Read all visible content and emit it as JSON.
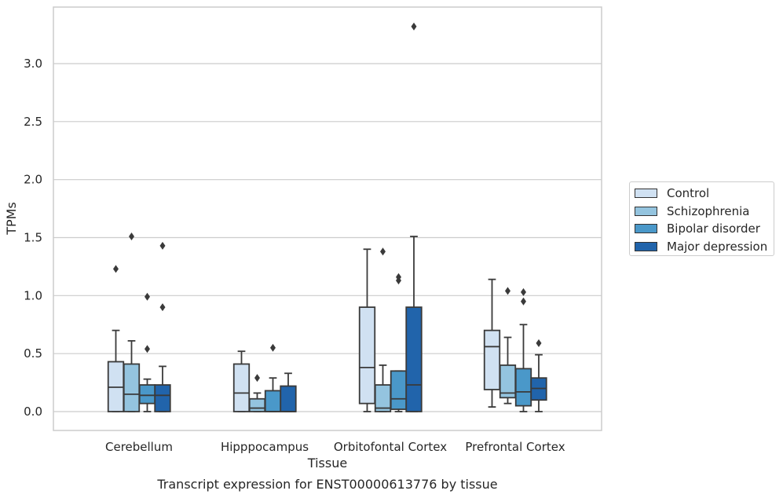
{
  "chart_data": {
    "type": "box",
    "title": "",
    "xlabel": "Tissue",
    "ylabel": "TPMs",
    "caption": "Transcript expression for ENST00000613776 by tissue",
    "ylim": [
      -0.16,
      3.5
    ],
    "yticks": [
      "0.0",
      "0.5",
      "1.0",
      "1.5",
      "2.0",
      "2.5",
      "3.0"
    ],
    "ytick_values": [
      0,
      0.5,
      1.0,
      1.5,
      2.0,
      2.5,
      3.0
    ],
    "grid": true,
    "legend_position": "right",
    "categories": [
      "Cerebellum",
      "Hipppocampus",
      "Orbitofontal Cortex",
      "Prefrontal Cortex"
    ],
    "series": [
      {
        "name": "Control",
        "color": "#d0e1f2",
        "boxes": [
          {
            "whislo": 0,
            "q1": 0,
            "med": 0.21,
            "q3": 0.43,
            "whishi": 0.7,
            "fliers": [
              1.23
            ]
          },
          {
            "whislo": 0,
            "q1": 0,
            "med": 0.16,
            "q3": 0.41,
            "whishi": 0.52,
            "fliers": []
          },
          {
            "whislo": 0,
            "q1": 0.07,
            "med": 0.38,
            "q3": 0.9,
            "whishi": 1.4,
            "fliers": []
          },
          {
            "whislo": 0.04,
            "q1": 0.19,
            "med": 0.56,
            "q3": 0.7,
            "whishi": 1.14,
            "fliers": []
          }
        ]
      },
      {
        "name": "Schizophrenia",
        "color": "#94c4df",
        "boxes": [
          {
            "whislo": 0,
            "q1": 0,
            "med": 0.15,
            "q3": 0.41,
            "whishi": 0.61,
            "fliers": [
              1.51
            ]
          },
          {
            "whislo": 0,
            "q1": 0,
            "med": 0.03,
            "q3": 0.11,
            "whishi": 0.16,
            "fliers": [
              0.29
            ]
          },
          {
            "whislo": 0,
            "q1": 0,
            "med": 0.03,
            "q3": 0.23,
            "whishi": 0.4,
            "fliers": [
              1.38
            ]
          },
          {
            "whislo": 0.07,
            "q1": 0.12,
            "med": 0.16,
            "q3": 0.4,
            "whishi": 0.64,
            "fliers": [
              1.04
            ]
          }
        ]
      },
      {
        "name": "Bipolar disorder",
        "color": "#4a98c9",
        "boxes": [
          {
            "whislo": 0,
            "q1": 0.07,
            "med": 0.14,
            "q3": 0.23,
            "whishi": 0.28,
            "fliers": [
              0.54,
              0.99
            ]
          },
          {
            "whislo": 0,
            "q1": 0,
            "med": 0,
            "q3": 0.18,
            "whishi": 0.29,
            "fliers": [
              0.55
            ]
          },
          {
            "whislo": 0,
            "q1": 0.02,
            "med": 0.11,
            "q3": 0.35,
            "whishi": 0.35,
            "fliers": [
              1.13,
              1.16
            ]
          },
          {
            "whislo": 0,
            "q1": 0.05,
            "med": 0.17,
            "q3": 0.37,
            "whishi": 0.75,
            "fliers": [
              0.95,
              1.03
            ]
          }
        ]
      },
      {
        "name": "Major depression",
        "color": "#2164ab",
        "boxes": [
          {
            "whislo": 0,
            "q1": 0,
            "med": 0.14,
            "q3": 0.23,
            "whishi": 0.39,
            "fliers": [
              0.9,
              1.43
            ]
          },
          {
            "whislo": 0,
            "q1": 0,
            "med": 0,
            "q3": 0.22,
            "whishi": 0.33,
            "fliers": []
          },
          {
            "whislo": 0,
            "q1": 0,
            "med": 0.23,
            "q3": 0.9,
            "whishi": 1.51,
            "fliers": [
              3.32
            ]
          },
          {
            "whislo": 0,
            "q1": 0.1,
            "med": 0.2,
            "q3": 0.29,
            "whishi": 0.49,
            "fliers": [
              0.59
            ]
          }
        ]
      }
    ]
  }
}
